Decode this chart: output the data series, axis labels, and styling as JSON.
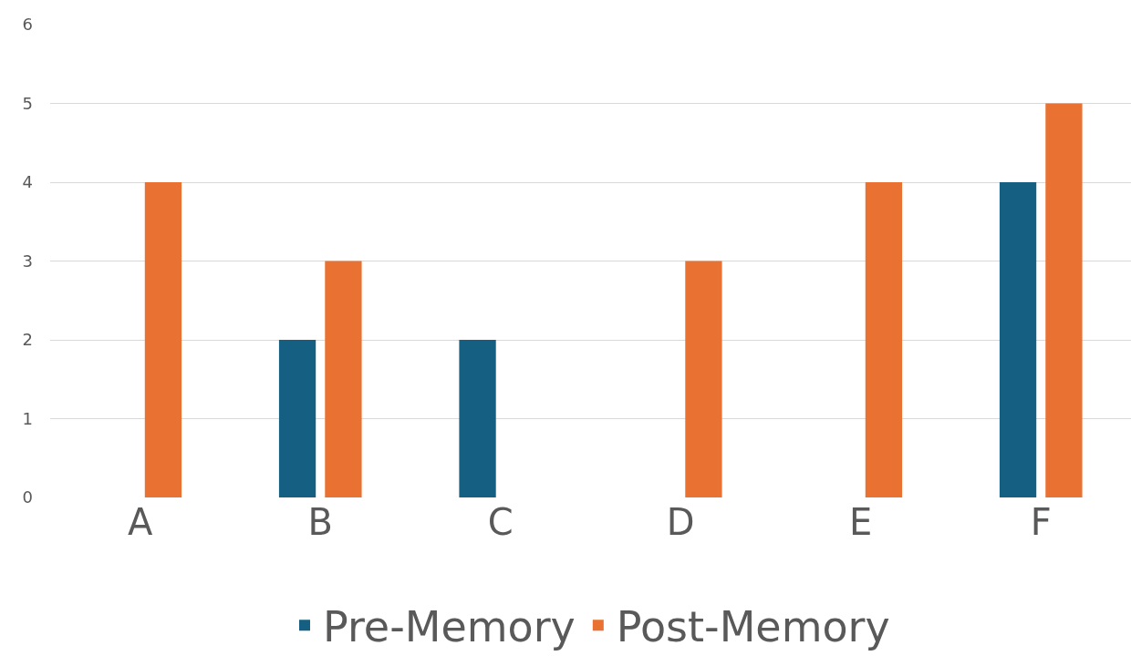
{
  "chart_data": {
    "type": "bar",
    "categories": [
      "A",
      "B",
      "C",
      "D",
      "E",
      "F"
    ],
    "series": [
      {
        "name": "Pre-Memory",
        "color": "#156082",
        "values": [
          0,
          2,
          2,
          0,
          0,
          4
        ]
      },
      {
        "name": "Post-Memory",
        "color": "#e97132",
        "values": [
          4,
          3,
          0,
          3,
          4,
          5
        ]
      }
    ],
    "ylim": [
      0,
      6
    ],
    "yticks": [
      0,
      1,
      2,
      3,
      4,
      5,
      6
    ],
    "grid": "y",
    "legend": "bottom"
  }
}
